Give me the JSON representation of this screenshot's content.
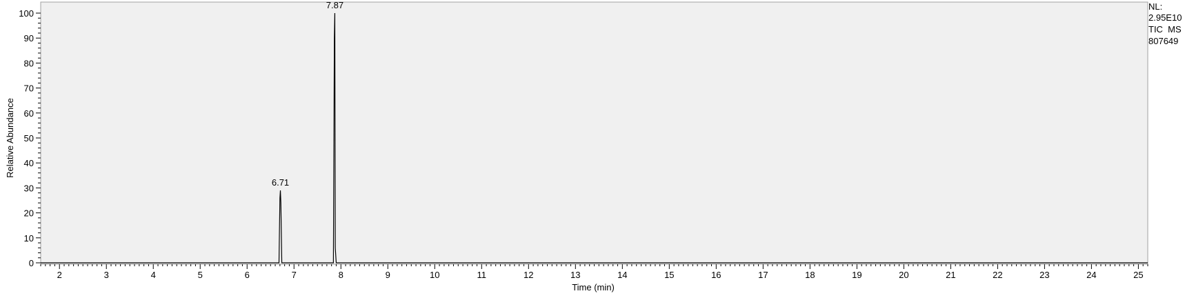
{
  "chart_data": {
    "type": "line",
    "xlabel": "Time (min)",
    "ylabel": "Relative Abundance",
    "xlim": [
      1.6,
      25.2
    ],
    "ylim": [
      0,
      100
    ],
    "x_ticks": [
      "2",
      "3",
      "4",
      "5",
      "6",
      "7",
      "8",
      "9",
      "10",
      "11",
      "12",
      "13",
      "14",
      "15",
      "16",
      "17",
      "18",
      "19",
      "20",
      "21",
      "22",
      "23",
      "24",
      "25"
    ],
    "y_ticks": [
      "0",
      "10",
      "20",
      "30",
      "40",
      "50",
      "60",
      "70",
      "80",
      "90",
      "100"
    ],
    "series": [
      {
        "x": [
          1.6,
          6.68,
          6.7,
          6.71,
          6.72,
          6.74,
          7.84,
          7.86,
          7.87,
          7.88,
          7.9,
          25.2
        ],
        "y": [
          0,
          0,
          26,
          29,
          24,
          0,
          0,
          90,
          100,
          6,
          0,
          0
        ]
      }
    ],
    "peak_labels": [
      {
        "x": 6.71,
        "y": 29,
        "text": "6.71"
      },
      {
        "x": 7.87,
        "y": 100,
        "text": "7.87"
      }
    ],
    "info": [
      "NL:",
      "2.95E10",
      "TIC  MS",
      "807649"
    ],
    "grid": false,
    "plot_background": "#f0f0f0",
    "line_color": "#000000"
  }
}
